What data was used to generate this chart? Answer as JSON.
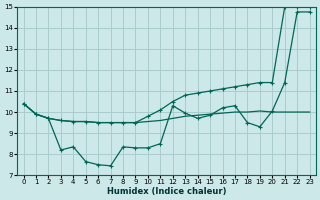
{
  "xlabel": "Humidex (Indice chaleur)",
  "bg_color": "#cce8e8",
  "grid_color": "#aacccc",
  "line_color": "#006655",
  "xlim": [
    -0.5,
    23.5
  ],
  "ylim": [
    7,
    15
  ],
  "xticks": [
    0,
    1,
    2,
    3,
    4,
    5,
    6,
    7,
    8,
    9,
    10,
    11,
    12,
    13,
    14,
    15,
    16,
    17,
    18,
    19,
    20,
    21,
    22,
    23
  ],
  "yticks": [
    7,
    8,
    9,
    10,
    11,
    12,
    13,
    14,
    15
  ],
  "line1_x": [
    0,
    1,
    2,
    3,
    4,
    5,
    6,
    7,
    8,
    9,
    10,
    11,
    12,
    13,
    14,
    15,
    16,
    17,
    18,
    19,
    20,
    21,
    22,
    23
  ],
  "line1_y": [
    10.4,
    9.9,
    9.7,
    9.6,
    9.55,
    9.55,
    9.5,
    9.5,
    9.5,
    9.5,
    9.55,
    9.6,
    9.7,
    9.8,
    9.85,
    9.9,
    9.95,
    10.0,
    10.0,
    10.05,
    10.0,
    10.0,
    10.0,
    10.0
  ],
  "line2_x": [
    0,
    1,
    2,
    3,
    4,
    5,
    6,
    7,
    8,
    9,
    10,
    11,
    12,
    13,
    14,
    15,
    16,
    17,
    18,
    19,
    20,
    21,
    22,
    23
  ],
  "line2_y": [
    10.4,
    9.9,
    9.7,
    9.6,
    9.55,
    9.55,
    9.5,
    9.5,
    9.5,
    9.5,
    9.8,
    10.1,
    10.5,
    10.8,
    10.9,
    11.0,
    11.1,
    11.2,
    11.3,
    11.4,
    11.4,
    15.0,
    15.0,
    15.0
  ],
  "line3_x": [
    0,
    1,
    2,
    3,
    4,
    5,
    6,
    7,
    8,
    9,
    10,
    11,
    12,
    13,
    14,
    15,
    16,
    17,
    18,
    19,
    20,
    21,
    22,
    23
  ],
  "line3_y": [
    10.4,
    9.9,
    9.7,
    8.2,
    8.35,
    7.65,
    7.5,
    7.45,
    8.35,
    8.3,
    8.3,
    8.5,
    10.3,
    9.95,
    9.7,
    9.85,
    10.2,
    10.3,
    9.5,
    9.3,
    10.05,
    11.4,
    14.75,
    14.75
  ]
}
